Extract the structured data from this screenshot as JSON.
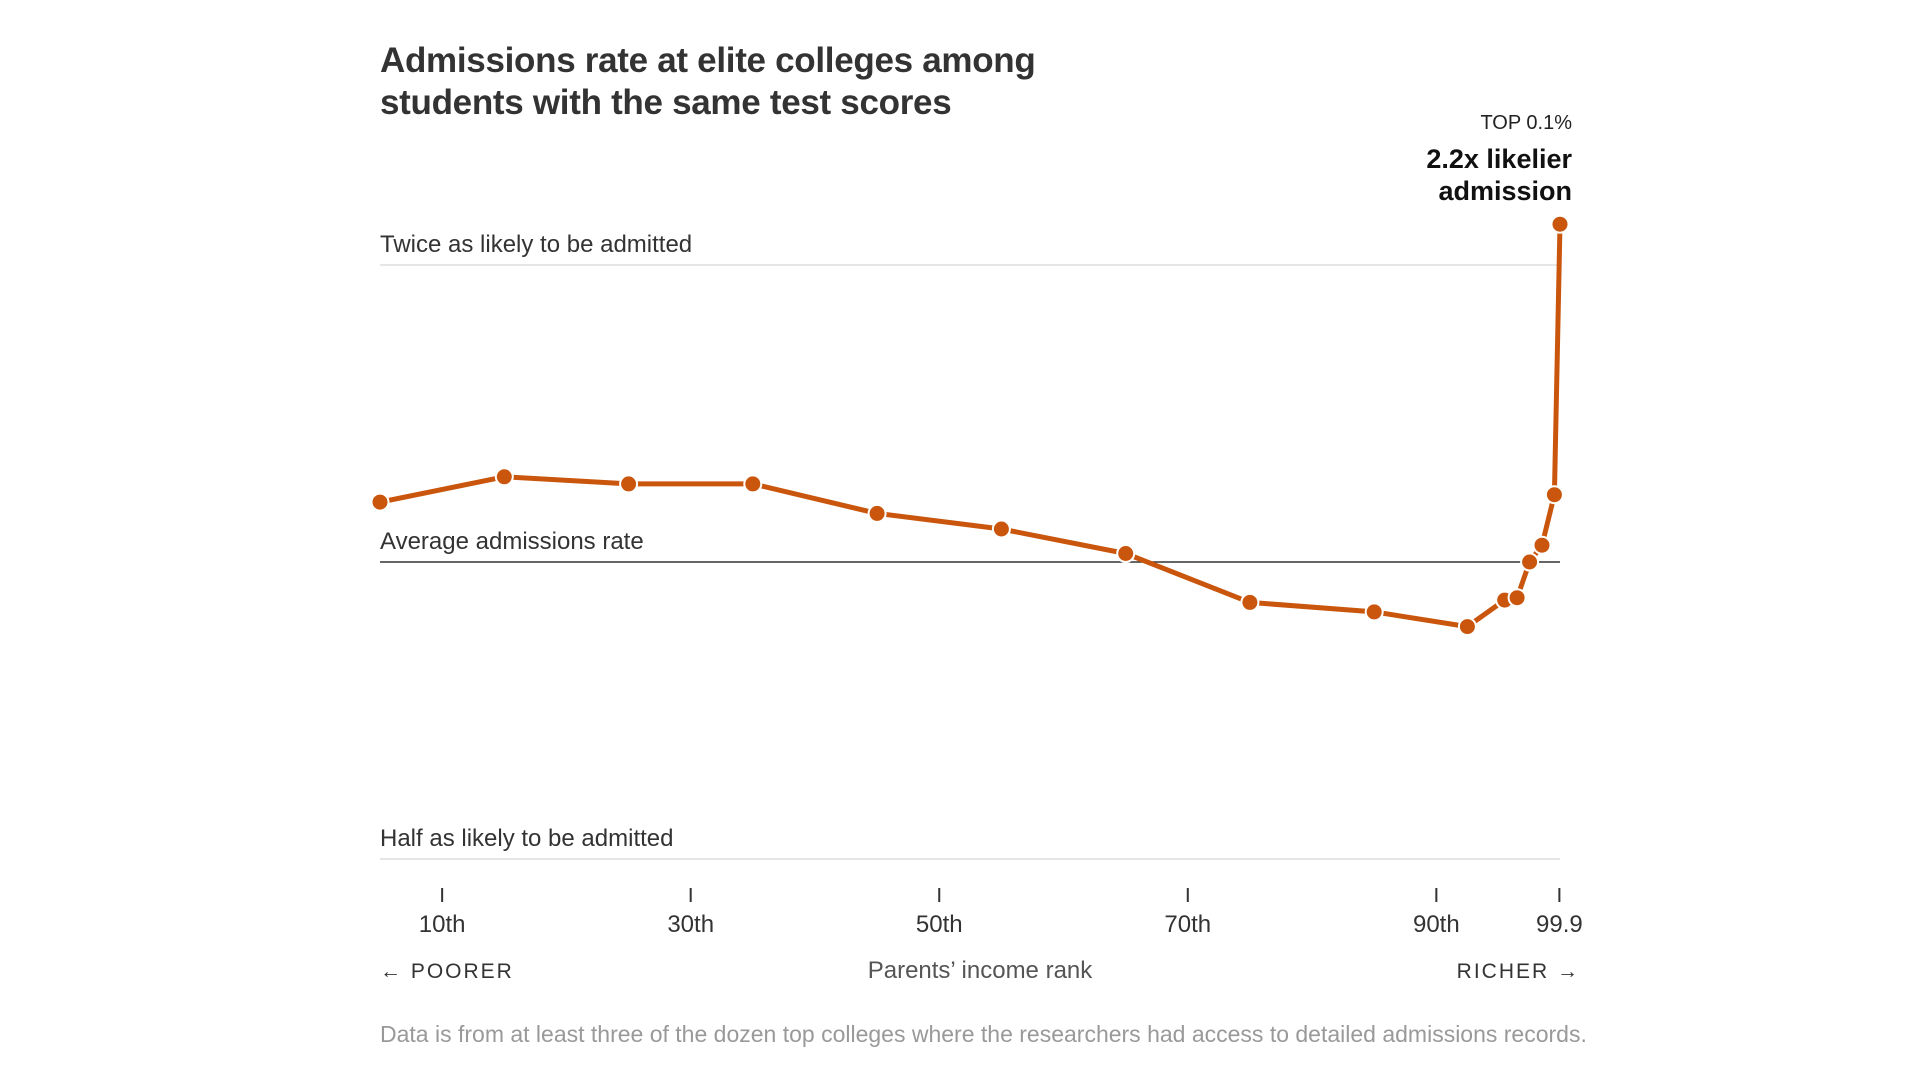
{
  "title": "Admissions rate at elite colleges among students with the same test scores",
  "note": "Data is from at least three of the dozen top colleges where the researchers had access to detailed admissions records.",
  "colors": {
    "line": "#c9560c",
    "reference_line": "#333333",
    "grid": "#dddddd",
    "note_text": "#999999"
  },
  "chart_data": {
    "type": "line",
    "title": "Admissions rate at elite colleges among students with the same test scores",
    "xlabel": "Parents’ income rank",
    "x_direction_labels": {
      "left": "← POORER",
      "right": "RICHER →"
    },
    "x_ticks": [
      {
        "value": 10,
        "label": "10th"
      },
      {
        "value": 30,
        "label": "30th"
      },
      {
        "value": 50,
        "label": "50th"
      },
      {
        "value": 70,
        "label": "70th"
      },
      {
        "value": 90,
        "label": "90th"
      },
      {
        "value": 99.9,
        "label": "99.9"
      }
    ],
    "ylabel": "",
    "y_scale": "log",
    "y_reference_lines": [
      {
        "value": 2,
        "label": "Twice as likely to be admitted"
      },
      {
        "value": 1,
        "label": "Average admissions rate"
      },
      {
        "value": 0.5,
        "label": "Half as likely to be admitted"
      }
    ],
    "series": [
      {
        "points": [
          {
            "x": 5,
            "y": 1.15
          },
          {
            "x": 15,
            "y": 1.22
          },
          {
            "x": 25,
            "y": 1.2
          },
          {
            "x": 35,
            "y": 1.2
          },
          {
            "x": 45,
            "y": 1.12
          },
          {
            "x": 55,
            "y": 1.08
          },
          {
            "x": 65,
            "y": 1.02
          },
          {
            "x": 75,
            "y": 0.91
          },
          {
            "x": 85,
            "y": 0.89
          },
          {
            "x": 92.5,
            "y": 0.86
          },
          {
            "x": 95.5,
            "y": 0.915
          },
          {
            "x": 96.5,
            "y": 0.92
          },
          {
            "x": 97.5,
            "y": 1.0
          },
          {
            "x": 98.5,
            "y": 1.04
          },
          {
            "x": 99.5,
            "y": 1.17
          },
          {
            "x": 99.95,
            "y": 2.2
          }
        ]
      }
    ],
    "annotation": {
      "small": "TOP 0.1%",
      "big_line1": "2.2x likelier",
      "big_line2": "admission"
    }
  }
}
